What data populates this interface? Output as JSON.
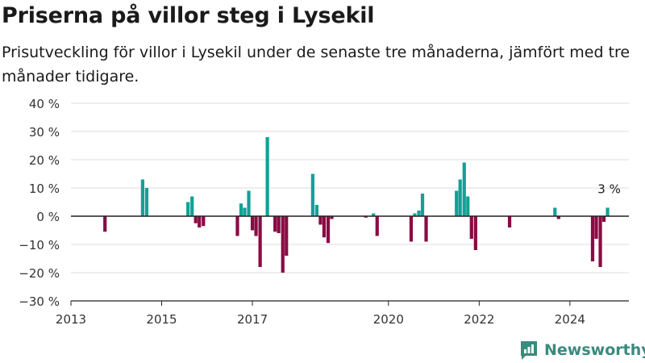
{
  "title": "Priserna på villor steg i Lysekil",
  "subtitle": "Prisutveckling för villor i Lysekil under de senaste tre månaderna, jämfört med tre månader tidigare.",
  "brand": {
    "name": "Newsworthy"
  },
  "colors": {
    "positive": "#13a196",
    "negative": "#8a0b43",
    "grid": "#dcdcdc",
    "axis": "#222222",
    "brand": "#3a8a7e"
  },
  "chart_data": {
    "type": "bar",
    "title": "Priserna på villor steg i Lysekil",
    "xlabel": "",
    "ylabel": "",
    "ylim": [
      -30,
      40
    ],
    "xlim": [
      2013.0,
      2025.3
    ],
    "yticks": [
      -30,
      -20,
      -10,
      0,
      10,
      20,
      30,
      40
    ],
    "ytick_labels": [
      "−30 %",
      "−20 %",
      "−10 %",
      "0 %",
      "10 %",
      "20 %",
      "30 %",
      "40 %"
    ],
    "xticks": [
      2013,
      2015,
      2017,
      2020,
      2022,
      2024
    ],
    "xtick_labels": [
      "2013",
      "2015",
      "2017",
      "2020",
      "2022",
      "2024"
    ],
    "grid": true,
    "x": [
      2013.75,
      2014.58,
      2014.67,
      2015.58,
      2015.67,
      2015.75,
      2015.83,
      2015.92,
      2016.67,
      2016.75,
      2016.83,
      2016.92,
      2017.0,
      2017.08,
      2017.17,
      2017.33,
      2017.5,
      2017.58,
      2017.67,
      2017.75,
      2018.33,
      2018.42,
      2018.5,
      2018.58,
      2018.67,
      2018.75,
      2019.5,
      2019.67,
      2019.75,
      2020.5,
      2020.58,
      2020.67,
      2020.75,
      2020.83,
      2021.5,
      2021.58,
      2021.67,
      2021.75,
      2021.83,
      2021.92,
      2022.67,
      2023.67,
      2023.75,
      2024.5,
      2024.58,
      2024.67,
      2024.75,
      2024.83
    ],
    "values": [
      -5.5,
      13,
      10,
      5,
      7,
      -2.5,
      -4,
      -3.5,
      -7,
      4.5,
      3,
      9,
      -5,
      -7,
      -18,
      28,
      -5.5,
      -6,
      -20,
      -14,
      15,
      4,
      -3,
      -7.5,
      -9.5,
      -1,
      -0.5,
      1,
      -7,
      -9,
      1,
      2,
      8,
      -9,
      9,
      13,
      19,
      7,
      -8,
      -12,
      -4,
      3,
      -1,
      -16,
      -8,
      -18,
      -2,
      3
    ],
    "annotations": [
      {
        "x": 2024.83,
        "y": 3,
        "text": "3 %"
      }
    ]
  }
}
